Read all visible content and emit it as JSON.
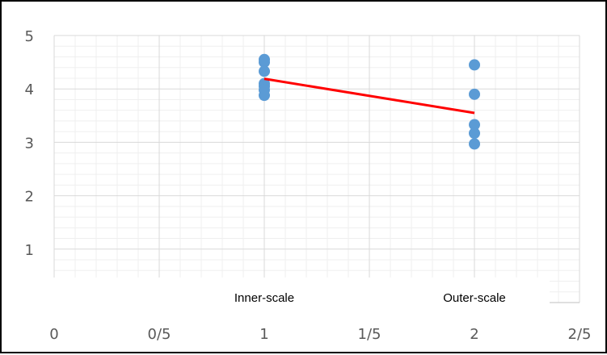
{
  "chart_data": {
    "type": "scatter",
    "title": "",
    "xlabel": "",
    "ylabel": "",
    "xlim": [
      0,
      2.5
    ],
    "ylim": [
      0,
      5
    ],
    "x_tick_labels": [
      "0",
      "0/5",
      "1",
      "1/5",
      "2",
      "2/5"
    ],
    "y_tick_labels": [
      "1",
      "2",
      "3",
      "4",
      "5"
    ],
    "category_labels": [
      {
        "text": "Inner-scale",
        "x": 1
      },
      {
        "text": "Outer-scale",
        "x": 2
      }
    ],
    "grid": true,
    "points": [
      {
        "x": 1,
        "y": 4.55
      },
      {
        "x": 1,
        "y": 4.5
      },
      {
        "x": 1,
        "y": 4.33
      },
      {
        "x": 1,
        "y": 4.1
      },
      {
        "x": 1,
        "y": 4.05
      },
      {
        "x": 1,
        "y": 3.98
      },
      {
        "x": 1,
        "y": 3.88
      },
      {
        "x": 2,
        "y": 4.45
      },
      {
        "x": 2,
        "y": 3.9
      },
      {
        "x": 2,
        "y": 3.33
      },
      {
        "x": 2,
        "y": 3.17
      },
      {
        "x": 2,
        "y": 2.97
      }
    ],
    "trend_line": {
      "x": [
        1,
        2
      ],
      "y": [
        4.19,
        3.55
      ]
    },
    "colors": {
      "points": "#5b9bd5",
      "trend_line": "#ff0000",
      "gridline": "#d9d9d9",
      "minor_gridline": "#efefef",
      "axis_text": "#595959"
    }
  }
}
